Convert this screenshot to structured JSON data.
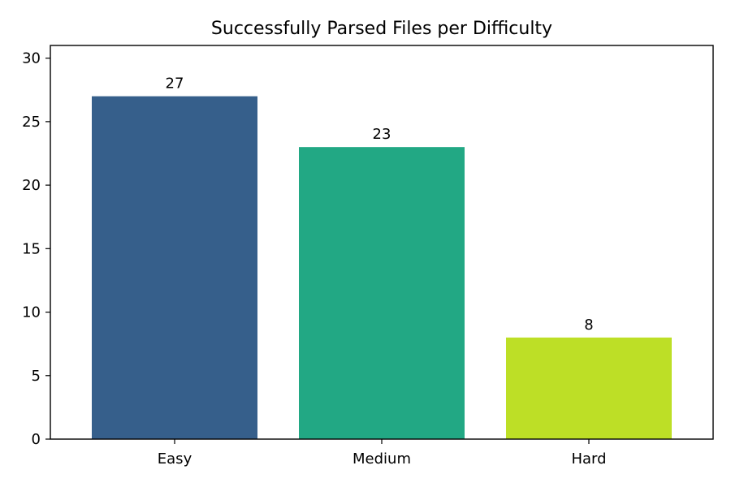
{
  "chart_data": {
    "type": "bar",
    "title": "Successfully Parsed Files per Difficulty",
    "xlabel": "",
    "ylabel": "",
    "categories": [
      "Easy",
      "Medium",
      "Hard"
    ],
    "values": [
      27,
      23,
      8
    ],
    "data_labels": [
      "27",
      "23",
      "8"
    ],
    "colors": [
      "#365f8b",
      "#22a884",
      "#bddf26"
    ],
    "ylim": [
      0,
      31
    ],
    "yticks": [
      0,
      5,
      10,
      15,
      20,
      25,
      30
    ],
    "ytick_labels": [
      "0",
      "5",
      "10",
      "15",
      "20",
      "25",
      "30"
    ],
    "grid": false,
    "legend": "none"
  }
}
